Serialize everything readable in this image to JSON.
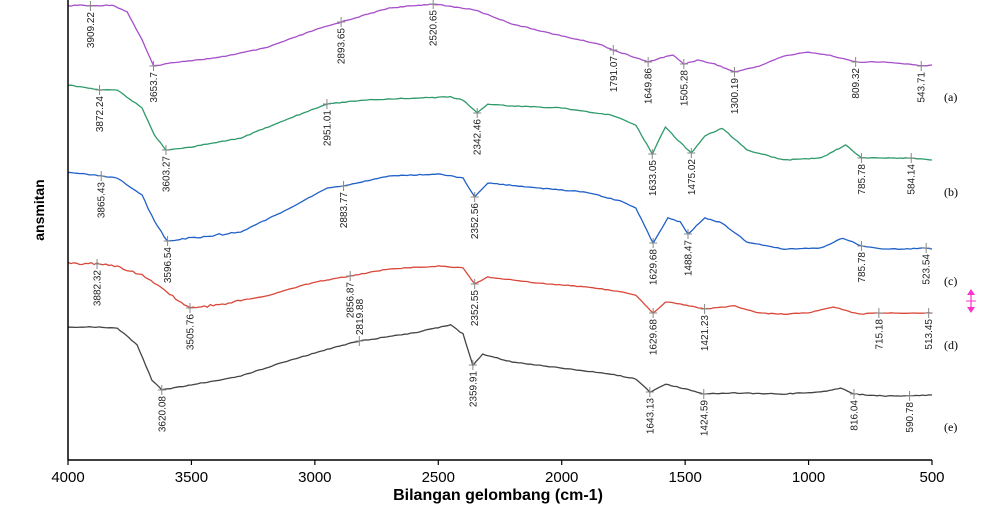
{
  "chart_data": {
    "type": "line",
    "xlabel": "Bilangan gelombang (cm-1)",
    "ylabel": "ansmitan",
    "xlim": [
      4000,
      500
    ],
    "x_reversed": true,
    "x_ticks": [
      4000,
      3500,
      3000,
      2500,
      2000,
      1500,
      1000,
      500
    ],
    "grid": false,
    "series": [
      {
        "name": "(a)",
        "color": "#a64fc9",
        "points": [
          [
            4000,
            6
          ],
          [
            3950,
            5
          ],
          [
            3909.22,
            6
          ],
          [
            3820,
            5
          ],
          [
            3760,
            12
          ],
          [
            3700,
            40
          ],
          [
            3653.7,
            66
          ],
          [
            3560,
            62
          ],
          [
            3400,
            58
          ],
          [
            3200,
            48
          ],
          [
            3000,
            30
          ],
          [
            2893.65,
            22
          ],
          [
            2700,
            8
          ],
          [
            2520.65,
            4
          ],
          [
            2350,
            10
          ],
          [
            2200,
            24
          ],
          [
            2000,
            36
          ],
          [
            1850,
            44
          ],
          [
            1791.07,
            50
          ],
          [
            1720,
            56
          ],
          [
            1649.86,
            62
          ],
          [
            1600,
            58
          ],
          [
            1550,
            55
          ],
          [
            1505.28,
            64
          ],
          [
            1450,
            60
          ],
          [
            1380,
            64
          ],
          [
            1300.19,
            72
          ],
          [
            1200,
            66
          ],
          [
            1100,
            56
          ],
          [
            1000,
            52
          ],
          [
            900,
            56
          ],
          [
            809.32,
            62
          ],
          [
            700,
            62
          ],
          [
            600,
            64
          ],
          [
            543.71,
            66
          ],
          [
            500,
            65
          ]
        ]
      },
      {
        "name": "(b)",
        "color": "#2f9a6a",
        "points": [
          [
            4000,
            85
          ],
          [
            3872.24,
            90
          ],
          [
            3800,
            90
          ],
          [
            3700,
            108
          ],
          [
            3650,
            135
          ],
          [
            3603.27,
            150
          ],
          [
            3500,
            147
          ],
          [
            3300,
            138
          ],
          [
            3100,
            118
          ],
          [
            2951.01,
            104
          ],
          [
            2800,
            100
          ],
          [
            2600,
            98
          ],
          [
            2450,
            97
          ],
          [
            2400,
            100
          ],
          [
            2342.46,
            113
          ],
          [
            2300,
            104
          ],
          [
            2200,
            106
          ],
          [
            2000,
            108
          ],
          [
            1800,
            115
          ],
          [
            1700,
            125
          ],
          [
            1633.05,
            154
          ],
          [
            1580,
            127
          ],
          [
            1530,
            140
          ],
          [
            1475.02,
            153
          ],
          [
            1420,
            136
          ],
          [
            1350,
            128
          ],
          [
            1250,
            150
          ],
          [
            1100,
            160
          ],
          [
            950,
            158
          ],
          [
            850,
            145
          ],
          [
            785.78,
            158
          ],
          [
            700,
            158
          ],
          [
            584.14,
            158
          ],
          [
            500,
            160
          ]
        ]
      },
      {
        "name": "(c)",
        "color": "#2060c8",
        "points": [
          [
            4000,
            172
          ],
          [
            3865.43,
            176
          ],
          [
            3800,
            178
          ],
          [
            3700,
            195
          ],
          [
            3650,
            222
          ],
          [
            3596.54,
            241
          ],
          [
            3500,
            238
          ],
          [
            3300,
            232
          ],
          [
            3100,
            208
          ],
          [
            2950,
            188
          ],
          [
            2883.77,
            186
          ],
          [
            2700,
            176
          ],
          [
            2500,
            174
          ],
          [
            2400,
            178
          ],
          [
            2352.56,
            197
          ],
          [
            2300,
            183
          ],
          [
            2100,
            188
          ],
          [
            1900,
            192
          ],
          [
            1750,
            202
          ],
          [
            1700,
            208
          ],
          [
            1629.68,
            243
          ],
          [
            1570,
            218
          ],
          [
            1520,
            222
          ],
          [
            1488.47,
            234
          ],
          [
            1420,
            218
          ],
          [
            1350,
            223
          ],
          [
            1250,
            242
          ],
          [
            1100,
            249
          ],
          [
            950,
            248
          ],
          [
            860,
            238
          ],
          [
            785.78,
            246
          ],
          [
            700,
            249
          ],
          [
            600,
            249
          ],
          [
            523.54,
            248
          ],
          [
            500,
            249
          ]
        ]
      },
      {
        "name": "(d)",
        "color": "#d9483a",
        "points": [
          [
            4000,
            263
          ],
          [
            3882.32,
            264
          ],
          [
            3800,
            266
          ],
          [
            3700,
            275
          ],
          [
            3600,
            292
          ],
          [
            3505.76,
            308
          ],
          [
            3400,
            305
          ],
          [
            3200,
            296
          ],
          [
            3000,
            282
          ],
          [
            2856.87,
            276
          ],
          [
            2700,
            269
          ],
          [
            2500,
            266
          ],
          [
            2400,
            268
          ],
          [
            2352.55,
            284
          ],
          [
            2300,
            277
          ],
          [
            2100,
            283
          ],
          [
            1900,
            287
          ],
          [
            1750,
            292
          ],
          [
            1700,
            295
          ],
          [
            1629.68,
            313
          ],
          [
            1580,
            302
          ],
          [
            1520,
            304
          ],
          [
            1421.23,
            309
          ],
          [
            1300,
            306
          ],
          [
            1200,
            313
          ],
          [
            1100,
            314
          ],
          [
            1000,
            313
          ],
          [
            900,
            307
          ],
          [
            800,
            314
          ],
          [
            715.18,
            313
          ],
          [
            600,
            313
          ],
          [
            513.45,
            313
          ],
          [
            500,
            313
          ]
        ]
      },
      {
        "name": "(e)",
        "color": "#444444",
        "points": [
          [
            4000,
            327
          ],
          [
            3900,
            327
          ],
          [
            3800,
            328
          ],
          [
            3720,
            345
          ],
          [
            3660,
            380
          ],
          [
            3620.08,
            390
          ],
          [
            3500,
            385
          ],
          [
            3300,
            376
          ],
          [
            3100,
            360
          ],
          [
            2900,
            346
          ],
          [
            2819.88,
            341
          ],
          [
            2600,
            333
          ],
          [
            2450,
            325
          ],
          [
            2400,
            334
          ],
          [
            2359.91,
            365
          ],
          [
            2320,
            354
          ],
          [
            2200,
            362
          ],
          [
            2000,
            368
          ],
          [
            1800,
            374
          ],
          [
            1700,
            379
          ],
          [
            1643.13,
            392
          ],
          [
            1580,
            384
          ],
          [
            1500,
            389
          ],
          [
            1424.59,
            394
          ],
          [
            1300,
            393
          ],
          [
            1100,
            394
          ],
          [
            950,
            392
          ],
          [
            870,
            388
          ],
          [
            816.04,
            394
          ],
          [
            700,
            396
          ],
          [
            590.78,
            396
          ],
          [
            500,
            395
          ]
        ]
      }
    ],
    "peaks": [
      {
        "series": 0,
        "x": 3909.22,
        "label": "3909.22",
        "side": "below"
      },
      {
        "series": 0,
        "x": 3653.7,
        "label": "3653.7",
        "side": "below"
      },
      {
        "series": 0,
        "x": 2893.65,
        "label": "2893.65",
        "side": "below"
      },
      {
        "series": 0,
        "x": 2520.65,
        "label": "2520.65",
        "side": "below"
      },
      {
        "series": 0,
        "x": 1791.07,
        "label": "1791.07",
        "side": "below"
      },
      {
        "series": 0,
        "x": 1649.86,
        "label": "1649.86",
        "side": "below"
      },
      {
        "series": 0,
        "x": 1505.28,
        "label": "1505.28",
        "side": "below"
      },
      {
        "series": 0,
        "x": 1300.19,
        "label": "1300.19",
        "side": "below"
      },
      {
        "series": 0,
        "x": 809.32,
        "label": "809.32",
        "side": "below"
      },
      {
        "series": 0,
        "x": 543.71,
        "label": "543.71",
        "side": "below"
      },
      {
        "series": 1,
        "x": 3872.24,
        "label": "3872.24",
        "side": "below"
      },
      {
        "series": 1,
        "x": 3603.27,
        "label": "3603.27",
        "side": "below"
      },
      {
        "series": 1,
        "x": 2951.01,
        "label": "2951.01",
        "side": "below"
      },
      {
        "series": 1,
        "x": 2342.46,
        "label": "2342.46",
        "side": "below"
      },
      {
        "series": 1,
        "x": 1633.05,
        "label": "1633.05",
        "side": "below"
      },
      {
        "series": 1,
        "x": 1475.02,
        "label": "1475.02",
        "side": "below"
      },
      {
        "series": 1,
        "x": 785.78,
        "label": "785.78",
        "side": "below"
      },
      {
        "series": 1,
        "x": 584.14,
        "label": "584.14",
        "side": "below"
      },
      {
        "series": 2,
        "x": 3865.43,
        "label": "3865.43",
        "side": "below"
      },
      {
        "series": 2,
        "x": 3596.54,
        "label": "3596.54",
        "side": "below"
      },
      {
        "series": 2,
        "x": 2883.77,
        "label": "2883.77",
        "side": "below"
      },
      {
        "series": 2,
        "x": 2352.56,
        "label": "2352.56",
        "side": "below"
      },
      {
        "series": 2,
        "x": 1629.68,
        "label": "1629.68",
        "side": "below"
      },
      {
        "series": 2,
        "x": 1488.47,
        "label": "1488.47",
        "side": "below"
      },
      {
        "series": 2,
        "x": 785.78,
        "label": "785.78",
        "side": "below"
      },
      {
        "series": 2,
        "x": 523.54,
        "label": "523.54",
        "side": "below"
      },
      {
        "series": 3,
        "x": 3882.32,
        "label": "3882.32",
        "side": "below"
      },
      {
        "series": 3,
        "x": 3505.76,
        "label": "3505.76",
        "side": "below"
      },
      {
        "series": 3,
        "x": 2856.87,
        "label": "2856.87",
        "side": "below"
      },
      {
        "series": 3,
        "x": 2352.55,
        "label": "2352.55",
        "side": "below"
      },
      {
        "series": 3,
        "x": 1629.68,
        "label": "1629.68",
        "side": "below"
      },
      {
        "series": 3,
        "x": 1421.23,
        "label": "1421.23",
        "side": "below"
      },
      {
        "series": 3,
        "x": 715.18,
        "label": "715.18",
        "side": "below"
      },
      {
        "series": 3,
        "x": 513.45,
        "label": "513.45",
        "side": "below"
      },
      {
        "series": 4,
        "x": 3620.08,
        "label": "3620.08",
        "side": "below"
      },
      {
        "series": 4,
        "x": 2819.88,
        "label": "2819.88",
        "side": "above"
      },
      {
        "series": 4,
        "x": 2359.91,
        "label": "2359.91",
        "side": "below"
      },
      {
        "series": 4,
        "x": 1643.13,
        "label": "1643.13",
        "side": "below"
      },
      {
        "series": 4,
        "x": 1424.59,
        "label": "1424.59",
        "side": "below"
      },
      {
        "series": 4,
        "x": 816.04,
        "label": "816.04",
        "side": "below"
      },
      {
        "series": 4,
        "x": 590.78,
        "label": "590.78",
        "side": "below"
      }
    ],
    "marker_color": "#ff33cc"
  }
}
